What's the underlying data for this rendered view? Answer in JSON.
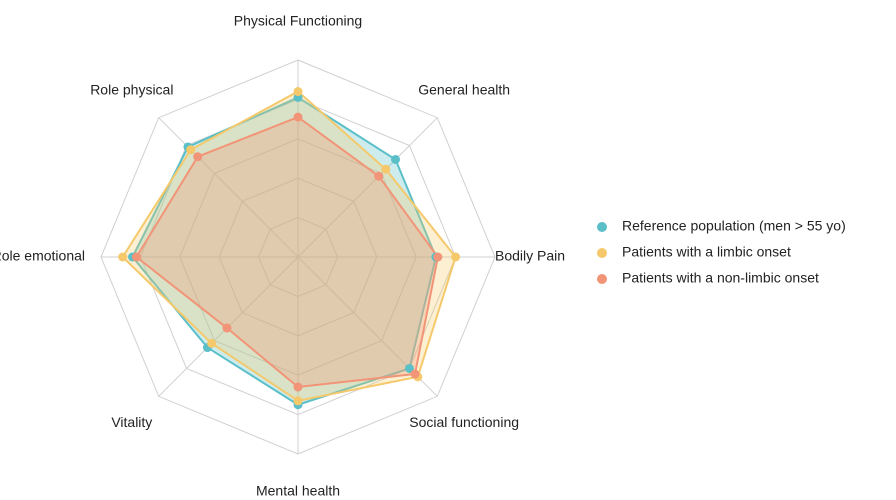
{
  "chart_data": {
    "type": "radar",
    "categories": [
      "Physical Functioning",
      "General health",
      "Bodily Pain",
      "Social functioning",
      "Mental health",
      "Vitality",
      "Role emotional",
      "Role physical"
    ],
    "rlim": [
      0,
      100
    ],
    "rticks": [
      20,
      40,
      60,
      80,
      100
    ],
    "grid": true,
    "legend": "right",
    "series": [
      {
        "name": "Reference population (men > 55 yo)",
        "color": "#5bbfc8",
        "values": [
          81,
          70,
          70,
          80,
          75,
          65,
          84,
          79
        ]
      },
      {
        "name": "Patients with a limbic onset",
        "color": "#f5c96b",
        "values": [
          84,
          63,
          80,
          86,
          73,
          62,
          89,
          77
        ]
      },
      {
        "name": "Patients with a non-limbic onset",
        "color": "#f29477",
        "values": [
          71,
          58,
          71,
          84,
          66,
          51,
          82,
          72
        ]
      }
    ]
  }
}
